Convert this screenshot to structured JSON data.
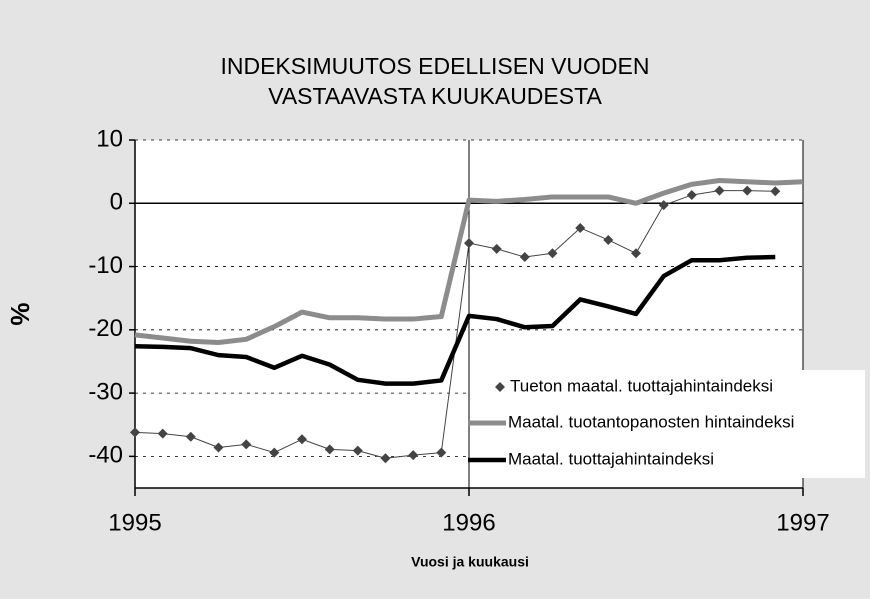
{
  "chart_data": {
    "type": "line",
    "title": [
      "INDEKSIMUUTOS EDELLISEN VUODEN",
      "VASTAAVASTA KUUKAUDESTA"
    ],
    "y_label": "%",
    "x_label": "Vuosi ja kuukausi",
    "x": [
      1995.0,
      1995.083,
      1995.167,
      1995.25,
      1995.333,
      1995.417,
      1995.5,
      1995.583,
      1995.667,
      1995.75,
      1995.833,
      1995.917,
      1996.0,
      1996.083,
      1996.167,
      1996.25,
      1996.333,
      1996.417,
      1996.5,
      1996.583,
      1996.667,
      1996.75,
      1996.833,
      1996.917,
      1997.0
    ],
    "series": [
      {
        "name": "Tueton maatal. tuottajahintaindeksi",
        "color": "#444444",
        "marker": "diamond",
        "values": [
          -36.2,
          -36.4,
          -36.9,
          -38.6,
          -38.1,
          -39.4,
          -37.3,
          -38.9,
          -39.1,
          -40.3,
          -39.8,
          -39.4,
          -6.3,
          -7.2,
          -8.5,
          -7.9,
          -3.9,
          -5.8,
          -7.9,
          -0.3,
          1.3,
          2.0,
          2.0,
          1.9,
          null
        ]
      },
      {
        "name": "Maatal. tuotantopanosten hintaindeksi",
        "color": "#8c8c8c",
        "values": [
          -20.8,
          -21.3,
          -21.8,
          -22.0,
          -21.5,
          -19.5,
          -17.2,
          -18.1,
          -18.1,
          -18.3,
          -18.3,
          -17.9,
          0.5,
          0.3,
          0.6,
          1.0,
          1.0,
          1.0,
          0.0,
          1.6,
          3.0,
          3.6,
          3.4,
          3.2,
          3.4
        ]
      },
      {
        "name": "Maatal. tuottajahintaindeksi",
        "color": "#000000",
        "values": [
          -22.6,
          -22.7,
          -22.9,
          -24.0,
          -24.3,
          -26.0,
          -24.1,
          -25.5,
          -27.9,
          -28.5,
          -28.5,
          -28.0,
          -17.8,
          -18.3,
          -19.6,
          -19.4,
          -15.2,
          -16.3,
          -17.5,
          -11.5,
          -9.0,
          -9.0,
          -8.6,
          -8.5,
          null
        ]
      }
    ],
    "xlim": [
      1995,
      1997
    ],
    "xticks": [
      1995,
      1996,
      1997
    ],
    "ylim": [
      -45,
      10
    ],
    "yticks": [
      10,
      0,
      -10,
      -20,
      -30,
      -40
    ],
    "grid": true,
    "legend": "lower right"
  }
}
